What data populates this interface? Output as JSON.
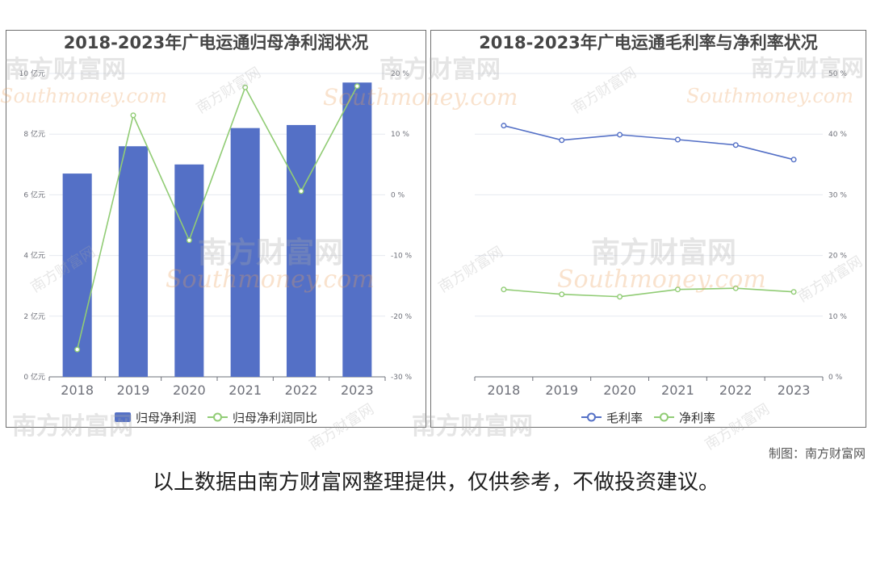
{
  "chart_data": [
    {
      "type": "bar",
      "title": "2018-2023年广电运通归母净利润状况",
      "categories": [
        "2018",
        "2019",
        "2020",
        "2021",
        "2022",
        "2023"
      ],
      "series": [
        {
          "name": "归母净利润",
          "type": "bar",
          "color": "#5470c6",
          "values": [
            6.7,
            7.6,
            7.0,
            8.2,
            8.3,
            9.7
          ]
        },
        {
          "name": "归母净利润同比",
          "type": "line",
          "color": "#91cc75",
          "values": [
            -25.5,
            13.1,
            -7.5,
            17.7,
            0.6,
            17.9
          ]
        }
      ],
      "y_axis_left": {
        "range": [
          0,
          10
        ],
        "ticks": [
          "0 亿元",
          "2 亿元",
          "4 亿元",
          "6 亿元",
          "8 亿元",
          "10 亿元"
        ]
      },
      "y_axis_right": {
        "range": [
          -30,
          20
        ],
        "ticks": [
          "-30 %",
          "-20 %",
          "-10 %",
          "0 %",
          "10 %",
          "20 %"
        ]
      },
      "grid": true,
      "legend_position": "bottom"
    },
    {
      "type": "line",
      "title": "2018-2023年广电运通毛利率与净利率状况",
      "categories": [
        "2018",
        "2019",
        "2020",
        "2021",
        "2022",
        "2023"
      ],
      "series": [
        {
          "name": "毛利率",
          "type": "line",
          "color": "#5470c6",
          "values": [
            41.4,
            39.0,
            39.9,
            39.1,
            38.2,
            35.8
          ]
        },
        {
          "name": "净利率",
          "type": "line",
          "color": "#91cc75",
          "values": [
            14.4,
            13.6,
            13.2,
            14.4,
            14.6,
            14.0
          ]
        }
      ],
      "y_axis_right": {
        "range": [
          0,
          50
        ],
        "ticks": [
          "0 %",
          "10 %",
          "20 %",
          "30 %",
          "40 %",
          "50 %"
        ]
      },
      "grid": true,
      "legend_position": "bottom"
    }
  ],
  "footer": {
    "credit": "制图：南方财富网",
    "disclaimer": "以上数据由南方财富网整理提供，仅供参考，不做投资建议。"
  },
  "watermark": {
    "cn": "南方财富网",
    "en": "Southmoney.com"
  }
}
